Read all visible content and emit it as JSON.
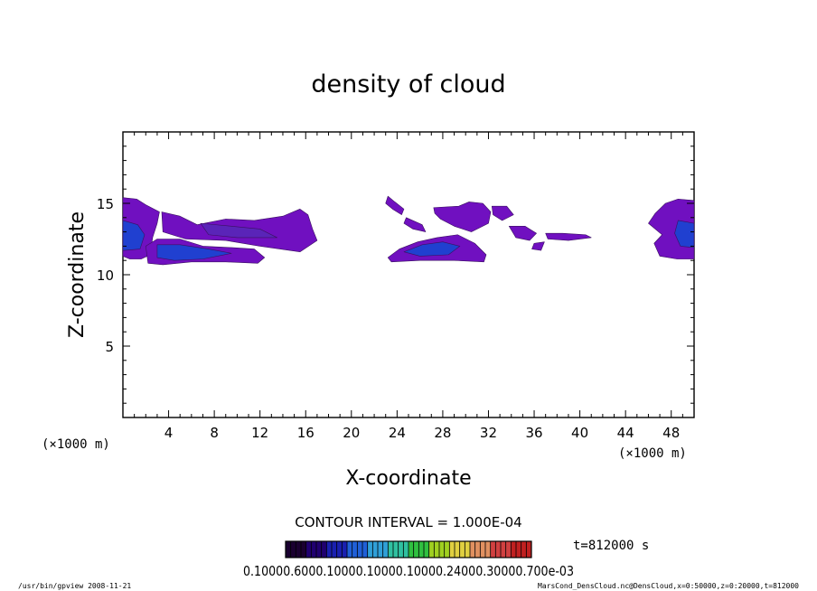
{
  "chart_data": {
    "type": "contour",
    "title": "density of cloud",
    "xlabel": "X-coordinate",
    "ylabel": "Z-coordinate",
    "x_unit": "(×1000 m)",
    "z_unit": "(×1000 m)",
    "xlim": [
      0,
      50
    ],
    "ylim": [
      0,
      20
    ],
    "x_ticks": [
      4,
      8,
      12,
      16,
      20,
      24,
      28,
      32,
      36,
      40,
      44,
      48
    ],
    "y_ticks": [
      5,
      10,
      15
    ],
    "contour_interval": "CONTOUR INTERVAL = 1.000E-04",
    "time_label": "t=812000 s",
    "colorbar_labels": "0.10000.6000.10000.10000.10000.24000.30000.700e-03",
    "colorbar_colors": [
      "#1a0030",
      "#200070",
      "#1a20b0",
      "#2060d8",
      "#30a0d8",
      "#30c0a0",
      "#30c040",
      "#a0d020",
      "#e0d040",
      "#e09060",
      "#d04040",
      "#c02020"
    ],
    "cloud_colors": {
      "outer": "#7010c0",
      "mid": "#5a24b8",
      "core": "#2040d0",
      "deep": "#1a20b0"
    },
    "cloud_regions": [
      {
        "name": "left-edge",
        "x_range": [
          0,
          3.2
        ],
        "z_range": [
          11.2,
          15.5
        ]
      },
      {
        "name": "lower-band-left",
        "x_range": [
          2,
          12.5
        ],
        "z_range": [
          10.6,
          12.4
        ]
      },
      {
        "name": "upper-band-left",
        "x_range": [
          3,
          17
        ],
        "z_range": [
          11.5,
          14.5
        ]
      },
      {
        "name": "middle-low",
        "x_range": [
          23,
          32
        ],
        "z_range": [
          10.7,
          12.8
        ]
      },
      {
        "name": "middle-upper",
        "x_range": [
          23,
          41.5
        ],
        "z_range": [
          11.7,
          15.7
        ]
      },
      {
        "name": "right-edge",
        "x_range": [
          46,
          50
        ],
        "z_range": [
          11.1,
          15.3
        ]
      }
    ]
  },
  "footer": {
    "program": "/usr/bin/gpview  2008-11-21",
    "source": "MarsCond_DensCloud.nc@DensCloud,x=0:50000,z=0:20000,t=812000"
  }
}
